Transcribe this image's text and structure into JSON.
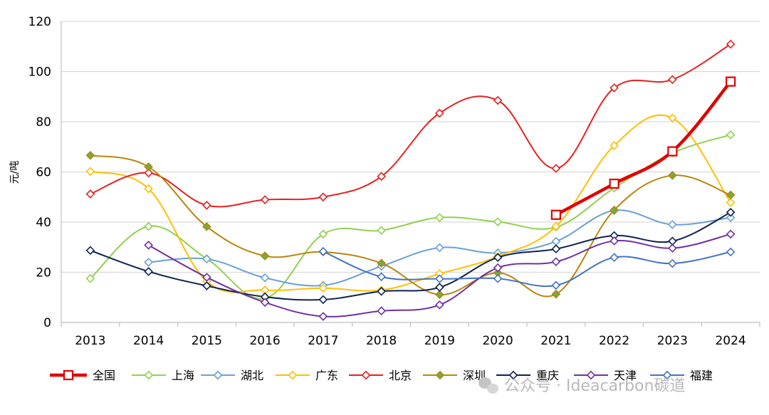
{
  "chart_data": {
    "type": "line",
    "title": "",
    "xlabel": "",
    "ylabel": "元/吨",
    "ylim": [
      0,
      120
    ],
    "yticks": [
      0,
      20,
      40,
      60,
      80,
      100,
      120
    ],
    "grid": "horizontal",
    "legend_position": "bottom",
    "x": [
      "2013",
      "2014",
      "2015",
      "2016",
      "2017",
      "2018",
      "2019",
      "2020",
      "2021",
      "2022",
      "2023",
      "2024"
    ],
    "series": [
      {
        "name": "全国",
        "color": "#e00000",
        "marker": "square",
        "bold": true,
        "values": [
          null,
          null,
          null,
          null,
          null,
          null,
          null,
          null,
          42.9,
          55.3,
          68.2,
          96.0
        ]
      },
      {
        "name": "上海",
        "color": "#92d050",
        "marker": "diamond",
        "values": [
          17.5,
          38.3,
          25.4,
          9.6,
          35.2,
          36.7,
          41.8,
          40.1,
          38.0,
          53.6,
          67.5,
          74.8
        ]
      },
      {
        "name": "湖北",
        "color": "#6aa0d4",
        "marker": "diamond",
        "values": [
          null,
          24.0,
          25.3,
          17.8,
          14.8,
          22.4,
          29.8,
          27.7,
          32.3,
          44.6,
          39.0,
          41.8
        ]
      },
      {
        "name": "广东",
        "color": "#ffc000",
        "marker": "diamond",
        "values": [
          60.2,
          53.3,
          16.4,
          12.9,
          13.7,
          12.9,
          19.4,
          26.3,
          38.3,
          70.5,
          81.5,
          47.8
        ]
      },
      {
        "name": "北京",
        "color": "#e8201f",
        "marker": "diamond",
        "values": [
          51.2,
          59.6,
          46.7,
          48.9,
          50.0,
          58.2,
          83.4,
          88.5,
          61.4,
          93.5,
          96.8,
          110.9
        ]
      },
      {
        "name": "深圳",
        "color": "#b8860b",
        "marker": "diamond",
        "marker_fill": "#70ad47",
        "values": [
          66.6,
          62.0,
          38.2,
          26.5,
          28.1,
          23.6,
          11.1,
          19.8,
          11.3,
          44.8,
          58.6,
          50.8
        ]
      },
      {
        "name": "重庆",
        "color": "#0d2251",
        "marker": "diamond",
        "values": [
          28.7,
          20.3,
          14.6,
          10.2,
          9.1,
          12.4,
          14.0,
          25.9,
          29.3,
          34.6,
          32.4,
          43.9
        ]
      },
      {
        "name": "天津",
        "color": "#7030a0",
        "marker": "diamond",
        "values": [
          null,
          30.8,
          18.0,
          8.0,
          2.4,
          4.6,
          7.0,
          21.8,
          24.2,
          32.5,
          29.6,
          35.2
        ]
      },
      {
        "name": "福建",
        "color": "#4472c4",
        "marker": "diamond",
        "values": [
          null,
          null,
          null,
          null,
          28.3,
          18.2,
          17.4,
          17.5,
          14.8,
          25.9,
          23.5,
          28.1
        ]
      }
    ]
  },
  "watermark": {
    "text": "公众号 · Ideacarbon碳道"
  }
}
